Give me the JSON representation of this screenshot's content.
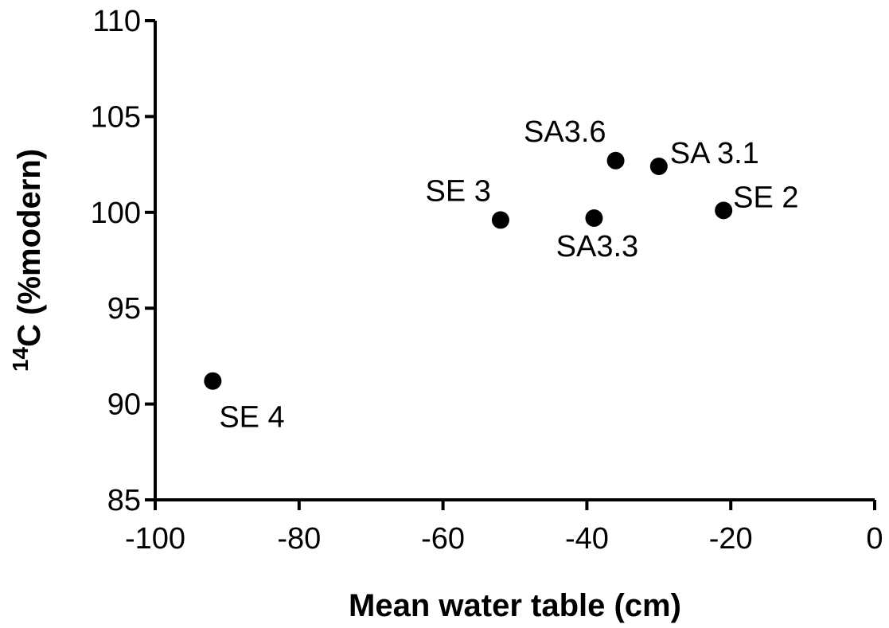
{
  "chart_data": {
    "type": "scatter",
    "title": "",
    "xlabel": "Mean water table (cm)",
    "ylabel": {
      "superscript": "14",
      "main": "C (%modern)"
    },
    "xlim": [
      -100,
      0
    ],
    "ylim": [
      85,
      110
    ],
    "x_ticks": [
      -100,
      -80,
      -60,
      -40,
      -20,
      0
    ],
    "y_ticks": [
      85,
      90,
      95,
      100,
      105,
      110
    ],
    "grid": false,
    "legend": "none",
    "marker_color": "#000000",
    "points": [
      {
        "label": "SE 4",
        "x": -92,
        "y": 91.2,
        "label_pos": "below-right"
      },
      {
        "label": "SE 3",
        "x": -52,
        "y": 99.6,
        "label_pos": "upper-left"
      },
      {
        "label": "SA3.3",
        "x": -39,
        "y": 99.7,
        "label_pos": "below"
      },
      {
        "label": "SA3.6",
        "x": -36,
        "y": 102.7,
        "label_pos": "upper-left"
      },
      {
        "label": "SA 3.1",
        "x": -30,
        "y": 102.4,
        "label_pos": "upper-right"
      },
      {
        "label": "SE 2",
        "x": -21,
        "y": 100.1,
        "label_pos": "right"
      }
    ]
  }
}
